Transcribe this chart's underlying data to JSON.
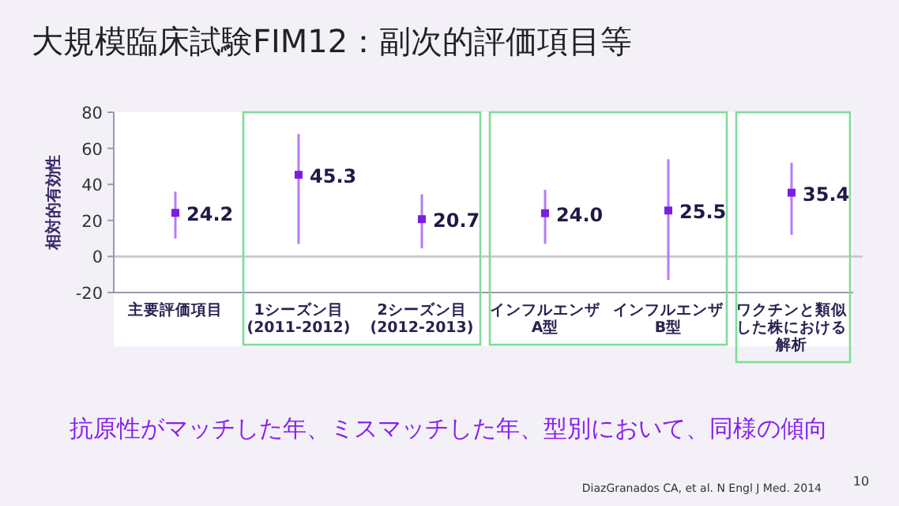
{
  "chart_data": {
    "type": "scatter",
    "title": "大規模臨床試験FIM12：副次的評価項目等",
    "ylabel": "相対的有効性",
    "categories": [
      "主要評価項目",
      "1シーズン目(2011-2012)",
      "2シーズン目(2012-2013)",
      "インフルエンザA型",
      "インフルエンザB型",
      "ワクチンと類似した株における解析"
    ],
    "values": [
      24.2,
      45.3,
      20.7,
      24.0,
      25.5,
      35.4
    ],
    "value_labels": [
      "24.2",
      "45.3",
      "20.7",
      "24.0",
      "25.5",
      "35.4"
    ],
    "errors": [
      [
        10,
        36
      ],
      [
        7,
        68
      ],
      [
        4.5,
        34.5
      ],
      [
        7,
        37
      ],
      [
        -13,
        54
      ],
      [
        12,
        52
      ]
    ],
    "color": "#7a1fe0",
    "marker": "square",
    "grid": false,
    "ylim": [
      -20,
      80
    ],
    "yticks": [
      -20,
      0,
      20,
      40,
      60,
      80
    ],
    "ref_lines": [
      {
        "axis": "y",
        "value": 0,
        "color": "#cccccc"
      }
    ],
    "annotations": [
      "抗原性がマッチした年、ミスマッチした年、型別において、同様の傾向",
      "DiazGranados CA, et al. N Engl J Med. 2014",
      "10"
    ]
  }
}
